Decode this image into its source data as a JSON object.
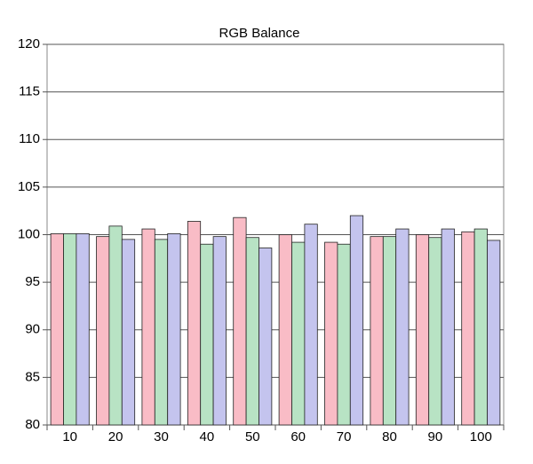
{
  "chart_data": {
    "type": "bar",
    "title": "RGB Balance",
    "categories": [
      "10",
      "20",
      "30",
      "40",
      "50",
      "60",
      "70",
      "80",
      "90",
      "100"
    ],
    "series": [
      {
        "color": "#f9bcc6",
        "values": [
          100.1,
          99.8,
          100.6,
          101.4,
          101.8,
          100.0,
          99.2,
          99.8,
          100.0,
          100.3
        ]
      },
      {
        "color": "#b8e3c4",
        "values": [
          100.1,
          100.9,
          99.5,
          99.0,
          99.7,
          99.2,
          99.0,
          99.8,
          99.7,
          100.6
        ]
      },
      {
        "color": "#c4c4ee",
        "values": [
          100.1,
          99.5,
          100.1,
          99.8,
          98.6,
          101.1,
          102.0,
          100.6,
          100.6,
          99.4
        ]
      }
    ],
    "ylim": [
      80,
      120
    ],
    "yticks": [
      80,
      85,
      90,
      95,
      100,
      105,
      110,
      115,
      120
    ],
    "grid": true
  }
}
